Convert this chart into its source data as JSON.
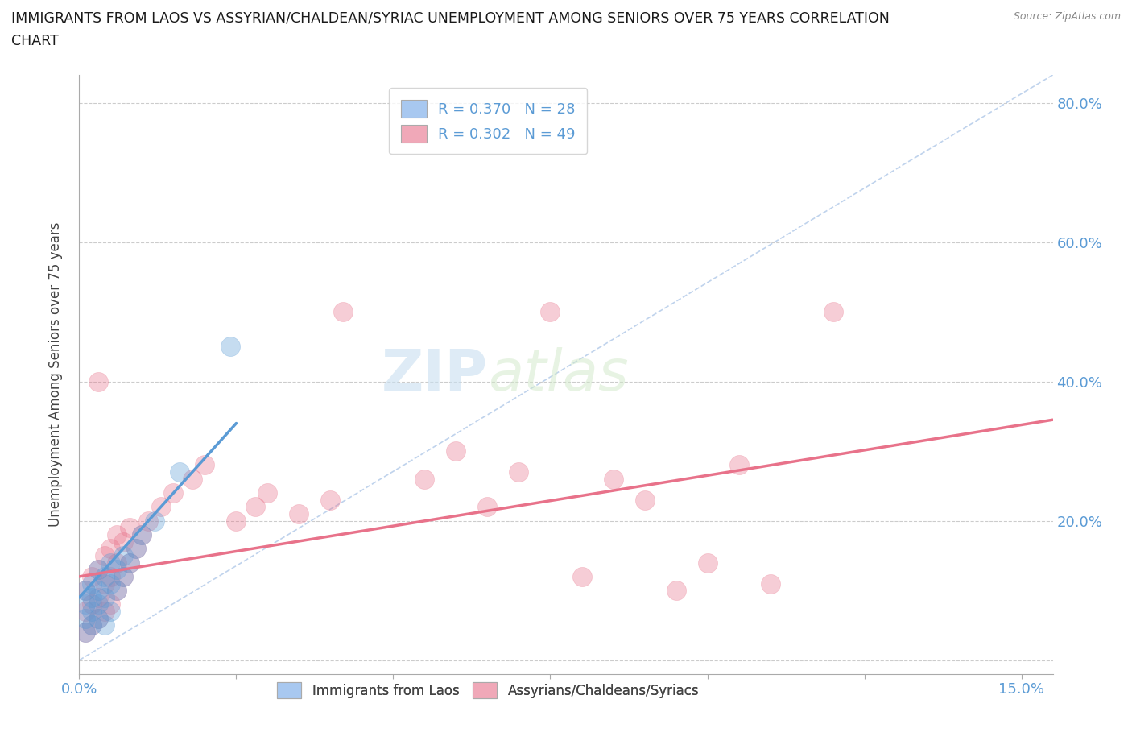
{
  "title_line1": "IMMIGRANTS FROM LAOS VS ASSYRIAN/CHALDEAN/SYRIAC UNEMPLOYMENT AMONG SENIORS OVER 75 YEARS CORRELATION",
  "title_line2": "CHART",
  "source": "Source: ZipAtlas.com",
  "ylabel_left": "Unemployment Among Seniors over 75 years",
  "xlim": [
    0.0,
    0.155
  ],
  "ylim": [
    -0.02,
    0.84
  ],
  "background_color": "#ffffff",
  "legend_top": [
    {
      "label": "R = 0.370   N = 28",
      "color": "#a8c8f0"
    },
    {
      "label": "R = 0.302   N = 49",
      "color": "#f0a8b8"
    }
  ],
  "legend_bottom": [
    {
      "label": "Immigrants from Laos",
      "color": "#a8c8f0"
    },
    {
      "label": "Assyrians/Chaldeans/Syriacs",
      "color": "#f0a8b8"
    }
  ],
  "blue_scatter": [
    [
      0.001,
      0.04
    ],
    [
      0.001,
      0.06
    ],
    [
      0.001,
      0.08
    ],
    [
      0.001,
      0.1
    ],
    [
      0.002,
      0.05
    ],
    [
      0.002,
      0.07
    ],
    [
      0.002,
      0.09
    ],
    [
      0.002,
      0.11
    ],
    [
      0.003,
      0.06
    ],
    [
      0.003,
      0.08
    ],
    [
      0.003,
      0.1
    ],
    [
      0.003,
      0.13
    ],
    [
      0.004,
      0.05
    ],
    [
      0.004,
      0.09
    ],
    [
      0.004,
      0.12
    ],
    [
      0.005,
      0.07
    ],
    [
      0.005,
      0.11
    ],
    [
      0.005,
      0.14
    ],
    [
      0.006,
      0.1
    ],
    [
      0.006,
      0.13
    ],
    [
      0.007,
      0.12
    ],
    [
      0.007,
      0.15
    ],
    [
      0.008,
      0.14
    ],
    [
      0.009,
      0.16
    ],
    [
      0.01,
      0.18
    ],
    [
      0.012,
      0.2
    ],
    [
      0.016,
      0.27
    ],
    [
      0.024,
      0.45
    ]
  ],
  "pink_scatter": [
    [
      0.001,
      0.04
    ],
    [
      0.001,
      0.07
    ],
    [
      0.001,
      0.1
    ],
    [
      0.002,
      0.05
    ],
    [
      0.002,
      0.08
    ],
    [
      0.002,
      0.12
    ],
    [
      0.003,
      0.06
    ],
    [
      0.003,
      0.09
    ],
    [
      0.003,
      0.13
    ],
    [
      0.003,
      0.4
    ],
    [
      0.004,
      0.07
    ],
    [
      0.004,
      0.11
    ],
    [
      0.004,
      0.15
    ],
    [
      0.005,
      0.08
    ],
    [
      0.005,
      0.12
    ],
    [
      0.005,
      0.16
    ],
    [
      0.006,
      0.1
    ],
    [
      0.006,
      0.14
    ],
    [
      0.006,
      0.18
    ],
    [
      0.007,
      0.12
    ],
    [
      0.007,
      0.17
    ],
    [
      0.008,
      0.14
    ],
    [
      0.008,
      0.19
    ],
    [
      0.009,
      0.16
    ],
    [
      0.01,
      0.18
    ],
    [
      0.011,
      0.2
    ],
    [
      0.013,
      0.22
    ],
    [
      0.015,
      0.24
    ],
    [
      0.018,
      0.26
    ],
    [
      0.02,
      0.28
    ],
    [
      0.025,
      0.2
    ],
    [
      0.028,
      0.22
    ],
    [
      0.03,
      0.24
    ],
    [
      0.035,
      0.21
    ],
    [
      0.04,
      0.23
    ],
    [
      0.042,
      0.5
    ],
    [
      0.055,
      0.26
    ],
    [
      0.06,
      0.3
    ],
    [
      0.065,
      0.22
    ],
    [
      0.07,
      0.27
    ],
    [
      0.075,
      0.5
    ],
    [
      0.08,
      0.12
    ],
    [
      0.085,
      0.26
    ],
    [
      0.09,
      0.23
    ],
    [
      0.095,
      0.1
    ],
    [
      0.1,
      0.14
    ],
    [
      0.105,
      0.28
    ],
    [
      0.11,
      0.11
    ],
    [
      0.12,
      0.5
    ]
  ],
  "blue_color": "#5b9bd5",
  "pink_color": "#e8728a",
  "blue_trend_x": [
    0.0,
    0.025
  ],
  "blue_trend_y": [
    0.09,
    0.34
  ],
  "pink_trend_x": [
    0.0,
    0.155
  ],
  "pink_trend_y": [
    0.12,
    0.345
  ],
  "ref_line_x": [
    0.0,
    0.155
  ],
  "ref_line_y": [
    0.0,
    0.84
  ],
  "yticks": [
    0.0,
    0.2,
    0.4,
    0.6,
    0.8
  ],
  "ytick_labels_right": [
    "",
    "20.0%",
    "40.0%",
    "60.0%",
    "80.0%"
  ],
  "xtick_labels": [
    "0.0%",
    "",
    "",
    "",
    "",
    "",
    "15.0%"
  ],
  "xticks": [
    0.0,
    0.025,
    0.05,
    0.075,
    0.1,
    0.125,
    0.15
  ],
  "scatter_size": 300,
  "scatter_alpha": 0.35,
  "scatter_linewidth": 0.5
}
